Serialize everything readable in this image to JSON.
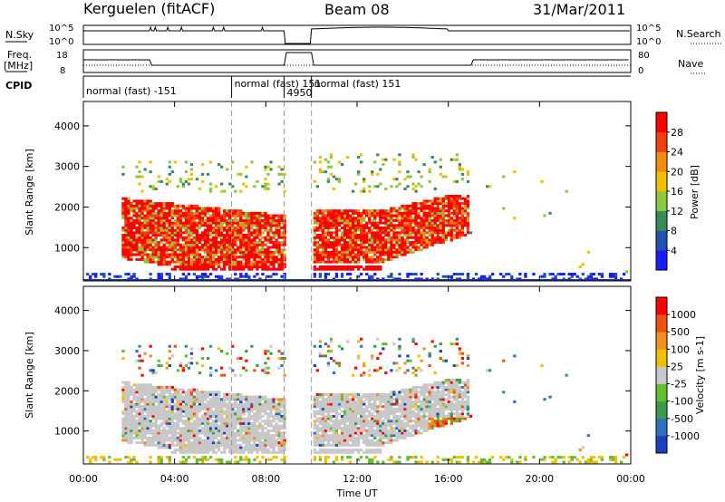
{
  "header": {
    "station": "Kerguelen (fitACF)",
    "beam": "Beam 08",
    "date": "31/Mar/2011"
  },
  "params": {
    "nsky_label": "N.Sky",
    "nsearch_label": "N.Search",
    "freq_label_1": "Freq.",
    "freq_label_2": "[MHz]",
    "nave_label": "Nave",
    "cpid_label": "CPID",
    "nsky_ticks": [
      "10^5",
      "10^0"
    ],
    "nsearch_ticks": [
      "10^5",
      "10^0"
    ],
    "freq_ticks": [
      "18",
      "8"
    ],
    "nave_ticks": [
      "80",
      "0"
    ],
    "cpid_segments": [
      {
        "label": "normal (fast) -151",
        "start": 0.0,
        "end": 6.5
      },
      {
        "label": "normal (fast) 151",
        "start": 6.5,
        "end": 8.8
      },
      {
        "label": "4950",
        "start": 8.8,
        "end": 10.0
      },
      {
        "label": "normal (fast) 151",
        "start": 10.0,
        "end": 24.0
      }
    ]
  },
  "chart_data": [
    {
      "type": "heatmap",
      "name": "power",
      "ylabel": "Slant Range [km]",
      "ylim": [
        180,
        4600
      ],
      "yticks": [
        "1000",
        "2000",
        "3000",
        "4000"
      ],
      "colorbar_label": "Power [dB]",
      "colorbar_ticks": [
        "4",
        "8",
        "12",
        "16",
        "20",
        "24",
        "28"
      ],
      "colors": [
        "#1a1aff",
        "#2050b0",
        "#3a8a5a",
        "#8ac840",
        "#f0c000",
        "#f08c10",
        "#f04010",
        "#ff0000"
      ],
      "data_gap": [
        8.85,
        10.05
      ],
      "dashed_times": [
        6.5,
        8.8,
        10.0
      ]
    },
    {
      "type": "heatmap",
      "name": "velocity",
      "ylabel": "Slant Range [km]",
      "ylim": [
        180,
        4600
      ],
      "yticks": [
        "1000",
        "2000",
        "3000",
        "4000"
      ],
      "xlabel": "Time UT",
      "xticks": [
        "00:00",
        "04:00",
        "08:00",
        "12:00",
        "16:00",
        "20:00",
        "00:00"
      ],
      "xlim": [
        0,
        24
      ],
      "colorbar_label": "Velocity [m s-1]",
      "colorbar_ticks": [
        "1000",
        "500",
        "100",
        "25",
        "-25",
        "-100",
        "-500",
        "-1000"
      ],
      "colors": [
        "#1a40c0",
        "#3070c0",
        "#3a9a4a",
        "#60c030",
        "#c8c8c8",
        "#f0c000",
        "#f09020",
        "#f05010",
        "#ff0000"
      ],
      "ground_scatter_color": "#c8c8c8",
      "data_gap": [
        8.85,
        10.05
      ],
      "dashed_times": [
        6.5,
        8.8,
        10.0
      ]
    }
  ]
}
